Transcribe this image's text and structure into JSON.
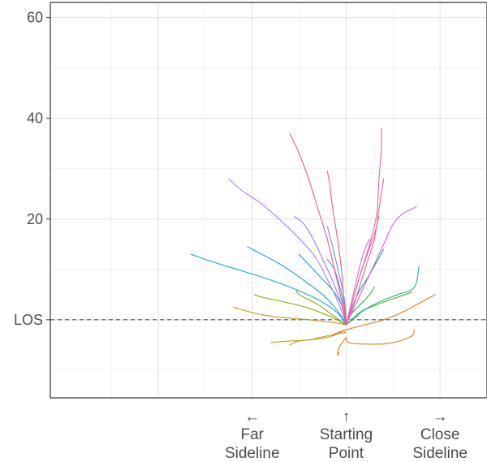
{
  "chart_data": {
    "type": "line",
    "title": "",
    "xlabel": "",
    "ylabel": "",
    "grid": true,
    "xlim": [
      -63,
      30
    ],
    "ylim": [
      -15.5,
      63
    ],
    "y_ticks": [
      {
        "value": 60,
        "label": "60"
      },
      {
        "value": 40,
        "label": "40"
      },
      {
        "value": 20,
        "label": "20"
      },
      {
        "value": 0,
        "label": "LOS"
      }
    ],
    "reference_line": {
      "y": 0,
      "style": "dashed",
      "label": "LOS"
    },
    "x_annotations": [
      {
        "x": -20,
        "arrow": "←",
        "lines": [
          "Far",
          "Sideline"
        ]
      },
      {
        "x": 0,
        "arrow": "↑",
        "lines": [
          "Starting",
          "Point"
        ]
      },
      {
        "x": 20,
        "arrow": "→",
        "lines": [
          "Close",
          "Sideline"
        ]
      }
    ],
    "series": [
      {
        "color": "#d4921a",
        "points": [
          [
            0,
            -1
          ],
          [
            -3,
            -0.5
          ],
          [
            -8,
            0
          ],
          [
            -14,
            0.5
          ],
          [
            -19,
            1.2
          ],
          [
            -24,
            2.5
          ]
        ]
      },
      {
        "color": "#c99a1a",
        "points": [
          [
            0,
            -2.5
          ],
          [
            -4,
            -3.2
          ],
          [
            -8,
            -4
          ],
          [
            -12,
            -4.2
          ],
          [
            -16,
            -4.5
          ]
        ]
      },
      {
        "color": "#b0a31a",
        "points": [
          [
            0,
            -2
          ],
          [
            -4,
            -3.5
          ],
          [
            -10,
            -4.2
          ],
          [
            -12,
            -5
          ]
        ]
      },
      {
        "color": "#d98218",
        "points": [
          [
            0,
            -3.5
          ],
          [
            -1.5,
            -5.5
          ],
          [
            -1.8,
            -7
          ],
          [
            -1.5,
            -6.5
          ]
        ]
      },
      {
        "color": "#d98218",
        "points": [
          [
            0,
            -3.5
          ],
          [
            0.5,
            -4.5
          ],
          [
            3,
            -4.8
          ],
          [
            8,
            -4.8
          ],
          [
            11,
            -4.3
          ],
          [
            14,
            -3.2
          ],
          [
            14.5,
            -2
          ]
        ]
      },
      {
        "color": "#e8751a",
        "points": [
          [
            -3,
            -3
          ],
          [
            0,
            -2
          ],
          [
            4,
            -1
          ],
          [
            8,
            0
          ],
          [
            12,
            1.5
          ],
          [
            15,
            3
          ],
          [
            19,
            5
          ]
        ]
      },
      {
        "color": "#7cae00",
        "points": [
          [
            0,
            -1
          ],
          [
            -3,
            0.5
          ],
          [
            -8,
            2.3
          ],
          [
            -13,
            3.5
          ],
          [
            -18,
            4.5
          ],
          [
            -19.5,
            5
          ]
        ]
      },
      {
        "color": "#8aa80f",
        "points": [
          [
            0,
            -1
          ],
          [
            -3,
            1
          ],
          [
            -6,
            3
          ],
          [
            -10,
            5
          ],
          [
            -10.5,
            6
          ]
        ]
      },
      {
        "color": "#5caf16",
        "points": [
          [
            0,
            -1
          ],
          [
            2,
            0.5
          ],
          [
            4,
            2
          ],
          [
            8,
            3.5
          ],
          [
            11,
            4.5
          ],
          [
            14,
            5.5
          ]
        ]
      },
      {
        "color": "#35b040",
        "points": [
          [
            0,
            -1
          ],
          [
            1,
            1
          ],
          [
            3,
            3
          ],
          [
            5,
            5
          ],
          [
            6,
            6.5
          ]
        ]
      },
      {
        "color": "#13b6a0",
        "points": [
          [
            0,
            -1
          ],
          [
            3,
            1.5
          ],
          [
            7,
            3.5
          ],
          [
            11,
            5
          ],
          [
            14,
            6
          ],
          [
            15,
            7.5
          ],
          [
            15.5,
            10.5
          ]
        ]
      },
      {
        "color": "#00b8a8",
        "points": [
          [
            0,
            -1
          ],
          [
            1.5,
            3
          ],
          [
            3,
            6
          ],
          [
            5,
            9
          ],
          [
            6.5,
            11.5
          ],
          [
            8,
            14
          ]
        ]
      },
      {
        "color": "#14a8d0",
        "points": [
          [
            0,
            -1
          ],
          [
            -2,
            1.5
          ],
          [
            -6,
            4
          ],
          [
            -12,
            6.5
          ],
          [
            -18,
            8.5
          ],
          [
            -25,
            10.5
          ],
          [
            -30,
            12
          ],
          [
            -33,
            13
          ]
        ]
      },
      {
        "color": "#1fa2e0",
        "points": [
          [
            0,
            -1
          ],
          [
            -2,
            2
          ],
          [
            -5,
            5
          ],
          [
            -10,
            8.5
          ],
          [
            -14,
            11
          ],
          [
            -20,
            14
          ],
          [
            -21,
            14.5
          ]
        ]
      },
      {
        "color": "#1e9ae6",
        "points": [
          [
            0,
            -1
          ],
          [
            -1,
            3
          ],
          [
            -3,
            6
          ],
          [
            -6,
            9
          ],
          [
            -8,
            11
          ],
          [
            -10,
            13
          ]
        ]
      },
      {
        "color": "#4a8ef0",
        "points": [
          [
            0,
            -1
          ],
          [
            -0.5,
            3
          ],
          [
            -1.5,
            7
          ],
          [
            -2.5,
            10
          ],
          [
            -4,
            12
          ]
        ]
      },
      {
        "color": "#9a7cf3",
        "points": [
          [
            0,
            -1
          ],
          [
            -1,
            3
          ],
          [
            -3,
            8
          ],
          [
            -5,
            12
          ],
          [
            -7,
            16
          ],
          [
            -9,
            19
          ],
          [
            -11,
            20.5
          ]
        ]
      },
      {
        "color": "#6f8ef6",
        "points": [
          [
            0,
            -1
          ],
          [
            -0.2,
            3
          ],
          [
            -1,
            7
          ],
          [
            -2,
            11
          ],
          [
            -3,
            15
          ],
          [
            -4,
            18.5
          ]
        ]
      },
      {
        "color": "#b07cf5",
        "points": [
          [
            0,
            -1
          ],
          [
            -1.5,
            3
          ],
          [
            -4,
            8
          ],
          [
            -7,
            13
          ],
          [
            -12,
            18
          ],
          [
            -18,
            23
          ],
          [
            -22,
            25.5
          ],
          [
            -25,
            28
          ]
        ]
      },
      {
        "color": "#d466ee",
        "points": [
          [
            0,
            -1
          ],
          [
            1,
            3
          ],
          [
            2,
            7
          ],
          [
            3,
            11
          ],
          [
            4,
            14
          ],
          [
            5,
            16
          ]
        ]
      },
      {
        "color": "#e858d8",
        "points": [
          [
            0,
            -1
          ],
          [
            2,
            3
          ],
          [
            4,
            7
          ],
          [
            6,
            11
          ],
          [
            8,
            15
          ],
          [
            10,
            19
          ],
          [
            12,
            21
          ],
          [
            14,
            22
          ],
          [
            15,
            22.5
          ]
        ]
      },
      {
        "color": "#ef5ec4",
        "points": [
          [
            0,
            -1
          ],
          [
            1.5,
            4
          ],
          [
            3,
            9
          ],
          [
            4.5,
            13
          ],
          [
            6,
            17
          ],
          [
            7,
            20.5
          ]
        ]
      },
      {
        "color": "#f0619a",
        "points": [
          [
            0,
            -1
          ],
          [
            2,
            4
          ],
          [
            4,
            10
          ],
          [
            6,
            16
          ],
          [
            7,
            22
          ],
          [
            8,
            28
          ]
        ]
      },
      {
        "color": "#f56a8b",
        "points": [
          [
            0,
            -1
          ],
          [
            1.5,
            4
          ],
          [
            3,
            9
          ],
          [
            5,
            15
          ],
          [
            6.5,
            21
          ],
          [
            7,
            28
          ],
          [
            7.5,
            34
          ],
          [
            7.5,
            38
          ]
        ]
      },
      {
        "color": "#ed5f7a",
        "points": [
          [
            0,
            -1
          ],
          [
            -0.5,
            4
          ],
          [
            -1,
            10
          ],
          [
            -2,
            17
          ],
          [
            -3,
            23
          ],
          [
            -3.5,
            27
          ],
          [
            -4,
            29.5
          ]
        ]
      },
      {
        "color": "#e4637e",
        "points": [
          [
            0,
            -1
          ],
          [
            -1,
            4
          ],
          [
            -2.5,
            10
          ],
          [
            -4,
            16
          ],
          [
            -6,
            22
          ],
          [
            -8,
            28
          ],
          [
            -10,
            33
          ],
          [
            -12,
            37
          ]
        ]
      }
    ]
  }
}
